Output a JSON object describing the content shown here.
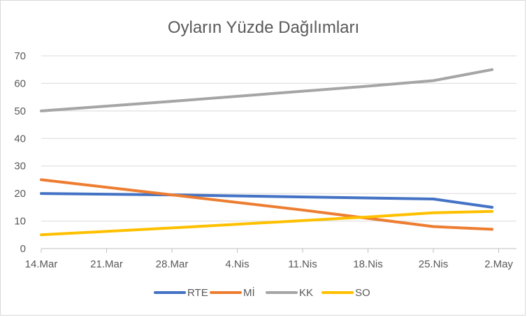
{
  "chart_data": {
    "type": "line",
    "title": "Oyların Yüzde Dağılımları",
    "xlabel": "",
    "ylabel": "",
    "ylim": [
      0,
      70
    ],
    "yticks": [
      0,
      10,
      20,
      30,
      40,
      50,
      60,
      70
    ],
    "categories": [
      "14.Mar",
      "21.Mar",
      "28.Mar",
      "4.Nis",
      "11.Nis",
      "18.Nis",
      "25.Nis",
      "2.May"
    ],
    "grid": true,
    "legend_position": "bottom",
    "series": [
      {
        "name": "RTE",
        "color": "#4472C4",
        "points": [
          [
            0,
            20
          ],
          [
            2,
            19.5
          ],
          [
            6,
            18
          ],
          [
            6.9,
            15
          ]
        ]
      },
      {
        "name": "Mİ",
        "color": "#ED7D31",
        "points": [
          [
            0,
            25
          ],
          [
            2,
            19.5
          ],
          [
            4,
            14
          ],
          [
            6,
            8
          ],
          [
            6.9,
            7
          ]
        ]
      },
      {
        "name": "KK",
        "color": "#A5A5A5",
        "points": [
          [
            0,
            50
          ],
          [
            2,
            53.5
          ],
          [
            5,
            59
          ],
          [
            6,
            61
          ],
          [
            6.9,
            65
          ]
        ]
      },
      {
        "name": "SO",
        "color": "#FFC000",
        "points": [
          [
            0,
            5
          ],
          [
            2,
            7.5
          ],
          [
            5,
            11.5
          ],
          [
            6,
            13
          ],
          [
            6.9,
            13.5
          ]
        ]
      }
    ]
  }
}
